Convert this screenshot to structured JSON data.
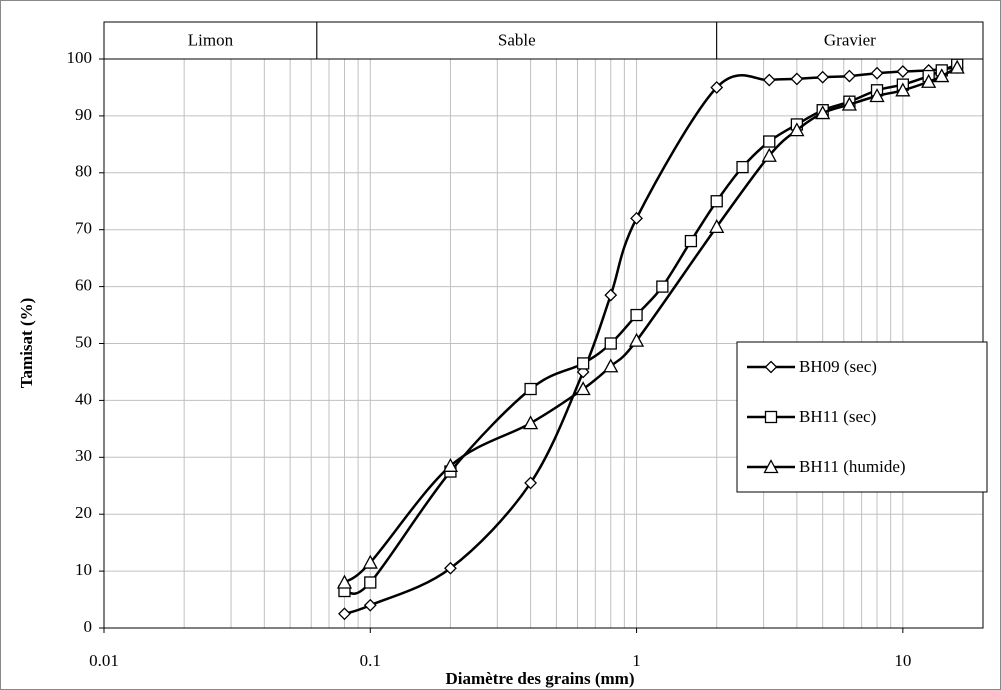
{
  "chart_data": {
    "type": "line",
    "x_label": "Diamètre des grains (mm)",
    "y_label": "Tamisat (%)",
    "xscale": "log",
    "xlim": [
      0.01,
      20
    ],
    "xticks": [
      0.01,
      0.1,
      1,
      10
    ],
    "ylim": [
      0,
      100
    ],
    "yticks": [
      0,
      10,
      20,
      30,
      40,
      50,
      60,
      70,
      80,
      90,
      100
    ],
    "grid": true,
    "legend": "right",
    "zones": [
      {
        "label": "Limon",
        "range": [
          0.01,
          0.063
        ]
      },
      {
        "label": "Sable",
        "range": [
          0.063,
          2
        ]
      },
      {
        "label": "Gravier",
        "range": [
          2,
          20
        ]
      }
    ],
    "series": [
      {
        "name": "BH09 (sec)",
        "color": "#000000",
        "marker": "diamond",
        "x": [
          0.08,
          0.1,
          0.2,
          0.4,
          0.63,
          0.8,
          1,
          2,
          3.15,
          4,
          5,
          6.3,
          8,
          10,
          12.5,
          16
        ],
        "values": [
          2.5,
          4,
          10.5,
          25.5,
          45,
          58.5,
          72,
          95,
          96.3,
          96.5,
          96.8,
          97,
          97.5,
          97.8,
          98,
          98.5
        ]
      },
      {
        "name": "BH11 (sec)",
        "color": "#000000",
        "marker": "square",
        "x": [
          0.08,
          0.1,
          0.2,
          0.4,
          0.63,
          0.8,
          1,
          1.25,
          1.6,
          2,
          2.5,
          3.15,
          4,
          5,
          6.3,
          8,
          10,
          12.5,
          14,
          16
        ],
        "values": [
          6.5,
          8,
          27.5,
          42,
          46.5,
          50,
          55,
          60,
          68,
          75,
          81,
          85.5,
          88.5,
          91,
          92.5,
          94.5,
          95.5,
          97,
          98,
          99
        ]
      },
      {
        "name": "BH11 (humide)",
        "color": "#000000",
        "marker": "triangle",
        "x": [
          0.08,
          0.1,
          0.2,
          0.4,
          0.63,
          0.8,
          1,
          2,
          3.15,
          4,
          5,
          6.3,
          8,
          10,
          12.5,
          14,
          16
        ],
        "values": [
          8,
          11.5,
          28.5,
          36,
          42,
          46,
          50.5,
          70.5,
          83,
          87.5,
          90.5,
          92,
          93.5,
          94.5,
          96,
          97,
          98.5
        ]
      }
    ]
  }
}
